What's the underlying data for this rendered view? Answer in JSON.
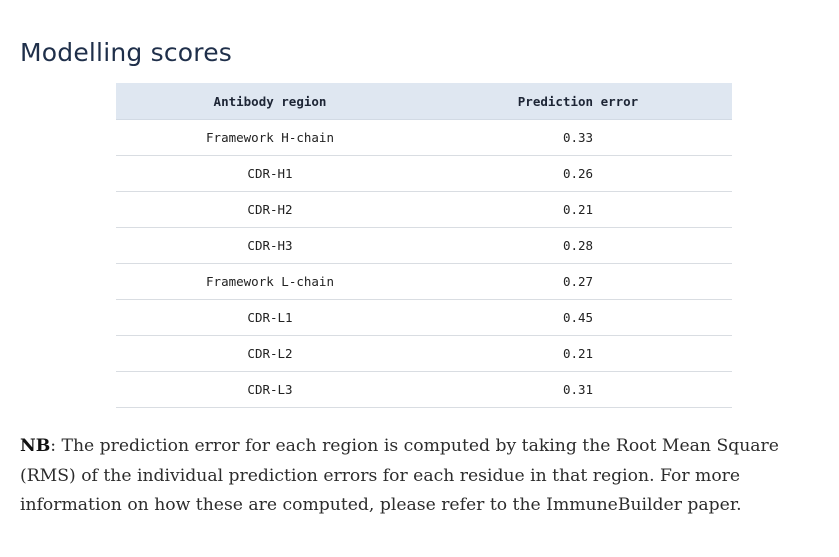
{
  "section": {
    "title": "Modelling scores"
  },
  "table": {
    "headers": {
      "region": "Antibody region",
      "error": "Prediction error"
    },
    "rows": [
      {
        "region": "Framework H-chain",
        "error": "0.33"
      },
      {
        "region": "CDR-H1",
        "error": "0.26"
      },
      {
        "region": "CDR-H2",
        "error": "0.21"
      },
      {
        "region": "CDR-H3",
        "error": "0.28"
      },
      {
        "region": "Framework L-chain",
        "error": "0.27"
      },
      {
        "region": "CDR-L1",
        "error": "0.45"
      },
      {
        "region": "CDR-L2",
        "error": "0.21"
      },
      {
        "region": "CDR-L3",
        "error": "0.31"
      }
    ]
  },
  "note": {
    "label": "NB",
    "text": ": The prediction error for each region is computed by taking the Root Mean Square (RMS) of the individual prediction errors for each residue in that region. For more information on how these are computed, please refer to the ImmuneBuilder paper."
  }
}
